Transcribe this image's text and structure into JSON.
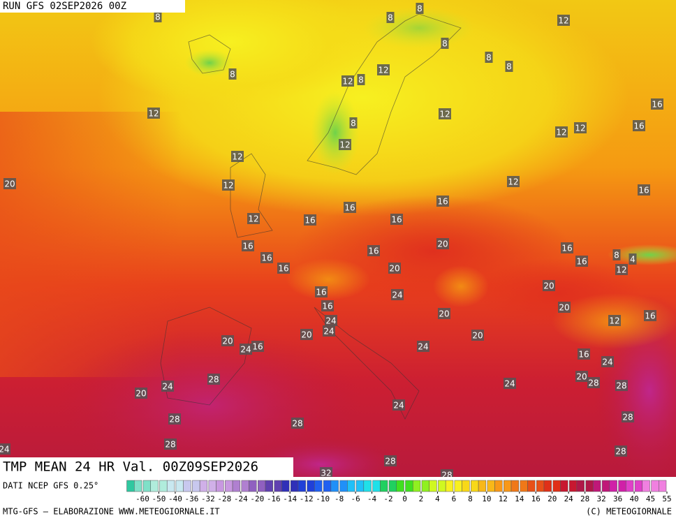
{
  "header": {
    "run": "RUN GFS 02SEP2026 00Z"
  },
  "map": {
    "contour_labels": [
      8,
      8,
      8,
      12,
      8,
      8,
      8,
      8,
      12,
      12,
      8,
      12,
      12,
      16,
      8,
      12,
      12,
      16,
      12,
      12,
      20,
      12,
      12,
      16,
      16,
      16,
      12,
      16,
      16,
      16,
      20,
      16,
      16,
      16,
      8,
      4,
      12,
      16,
      16,
      20,
      20,
      16,
      24,
      16,
      20,
      20,
      24,
      12,
      16,
      24,
      20,
      20,
      20,
      24,
      16,
      24,
      16,
      24,
      20,
      28,
      28,
      24,
      24,
      28,
      20,
      24,
      28,
      28,
      28,
      28,
      24,
      28,
      28,
      32,
      28
    ]
  },
  "footer": {
    "title": "TMP MEAN 24 HR Val. 00Z09SEP2026",
    "source": "DATI NCEP GFS 0.25°",
    "credit": "MTG-GFS — ELABORAZIONE WWW.METEOGIORNALE.IT",
    "copyright": "(C) METEOGIORNALE"
  },
  "legend": {
    "ticks": [
      -60,
      -50,
      -40,
      -36,
      -32,
      -28,
      -24,
      -20,
      -16,
      -14,
      -12,
      -10,
      -8,
      -6,
      -4,
      -2,
      0,
      2,
      4,
      6,
      8,
      10,
      12,
      14,
      16,
      20,
      24,
      28,
      32,
      36,
      40,
      45,
      55
    ]
  }
}
